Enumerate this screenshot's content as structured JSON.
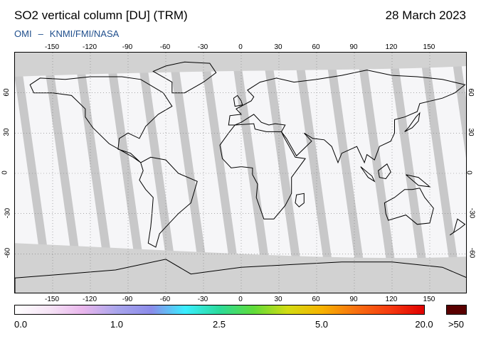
{
  "header": {
    "title": "SO2 vertical column [DU] (TRM)",
    "date": "28 March 2023",
    "instrument": "OMI",
    "separator": "–",
    "source": "KNMI/FMI/NASA"
  },
  "map": {
    "lon_ticks_top": [
      "-150",
      "-120",
      "-90",
      "-60",
      "-30",
      "0",
      "30",
      "60",
      "90",
      "120",
      "150"
    ],
    "lon_ticks_bottom": [
      "-150",
      "-120",
      "-90",
      "-60",
      "-30",
      "0",
      "30",
      "60",
      "90",
      "120",
      "150"
    ],
    "lat_ticks_left": [
      "60",
      "30",
      "0",
      "-30",
      "-60"
    ],
    "lat_ticks_right": [
      "60",
      "30",
      "0",
      "-30",
      "-60"
    ],
    "lon_range": [
      -180,
      180
    ],
    "lat_range": [
      -90,
      90
    ],
    "projection": "equirectangular",
    "graticule": "dotted, every 30 degrees",
    "colors": {
      "no_data": "#c8c8c8",
      "polar_night": "#d2d2d2",
      "swath_gap": "#a2a2a2",
      "low_value": "#f6f6f8",
      "coastline": "#000000"
    }
  },
  "colorbar": {
    "labels": [
      "0.0",
      "1.0",
      "2.5",
      "5.0",
      "20.0"
    ],
    "overflow_label": ">50",
    "overflow_color": "#5a0000",
    "gradient": [
      "#ffffff",
      "#f6e4f6",
      "#e9b6ec",
      "#a9a5ec",
      "#8b8bea",
      "#3aeeff",
      "#2bdb9a",
      "#5fdc3a",
      "#d3dc12",
      "#f7b300",
      "#f87010",
      "#f63a10",
      "#e00000"
    ]
  }
}
